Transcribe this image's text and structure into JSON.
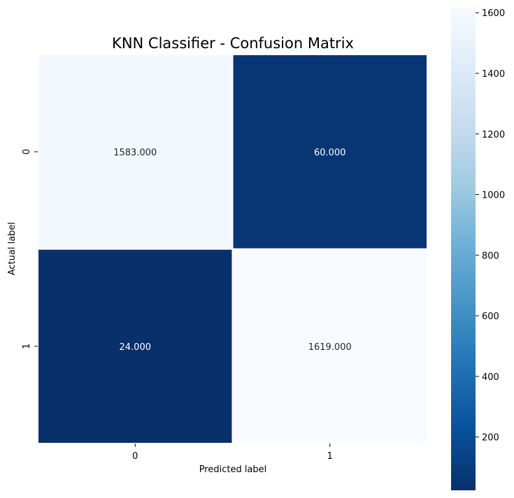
{
  "chart_data": {
    "type": "heatmap",
    "title": "KNN Classifier - Confusion Matrix",
    "xlabel": "Predicted label",
    "ylabel": "Actual label",
    "x_categories": [
      "0",
      "1"
    ],
    "y_categories": [
      "0",
      "1"
    ],
    "values": [
      [
        1583,
        60
      ],
      [
        24,
        1619
      ]
    ],
    "annotations": [
      [
        "1583.000",
        "60.000"
      ],
      [
        "24.000",
        "1619.000"
      ]
    ],
    "colormap": "Blues_r",
    "colorbar": {
      "min": 24,
      "max": 1619,
      "ticks": [
        200,
        400,
        600,
        800,
        1000,
        1200,
        1400,
        1600
      ],
      "tick_labels": [
        "200",
        "400",
        "600",
        "800",
        "1000",
        "1200",
        "1400",
        "1600"
      ]
    },
    "colors": {
      "low": "#08306b",
      "high": "#f7fbff",
      "light_text": "#ffffff",
      "dark_text": "#262626"
    }
  }
}
